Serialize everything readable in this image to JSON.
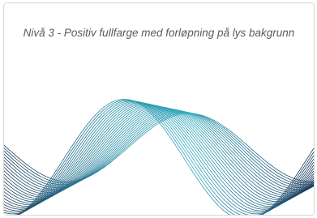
{
  "card": {
    "title": "Nivå 3 - Positiv fullfarge med forløpning på lys bakgrunn"
  }
}
